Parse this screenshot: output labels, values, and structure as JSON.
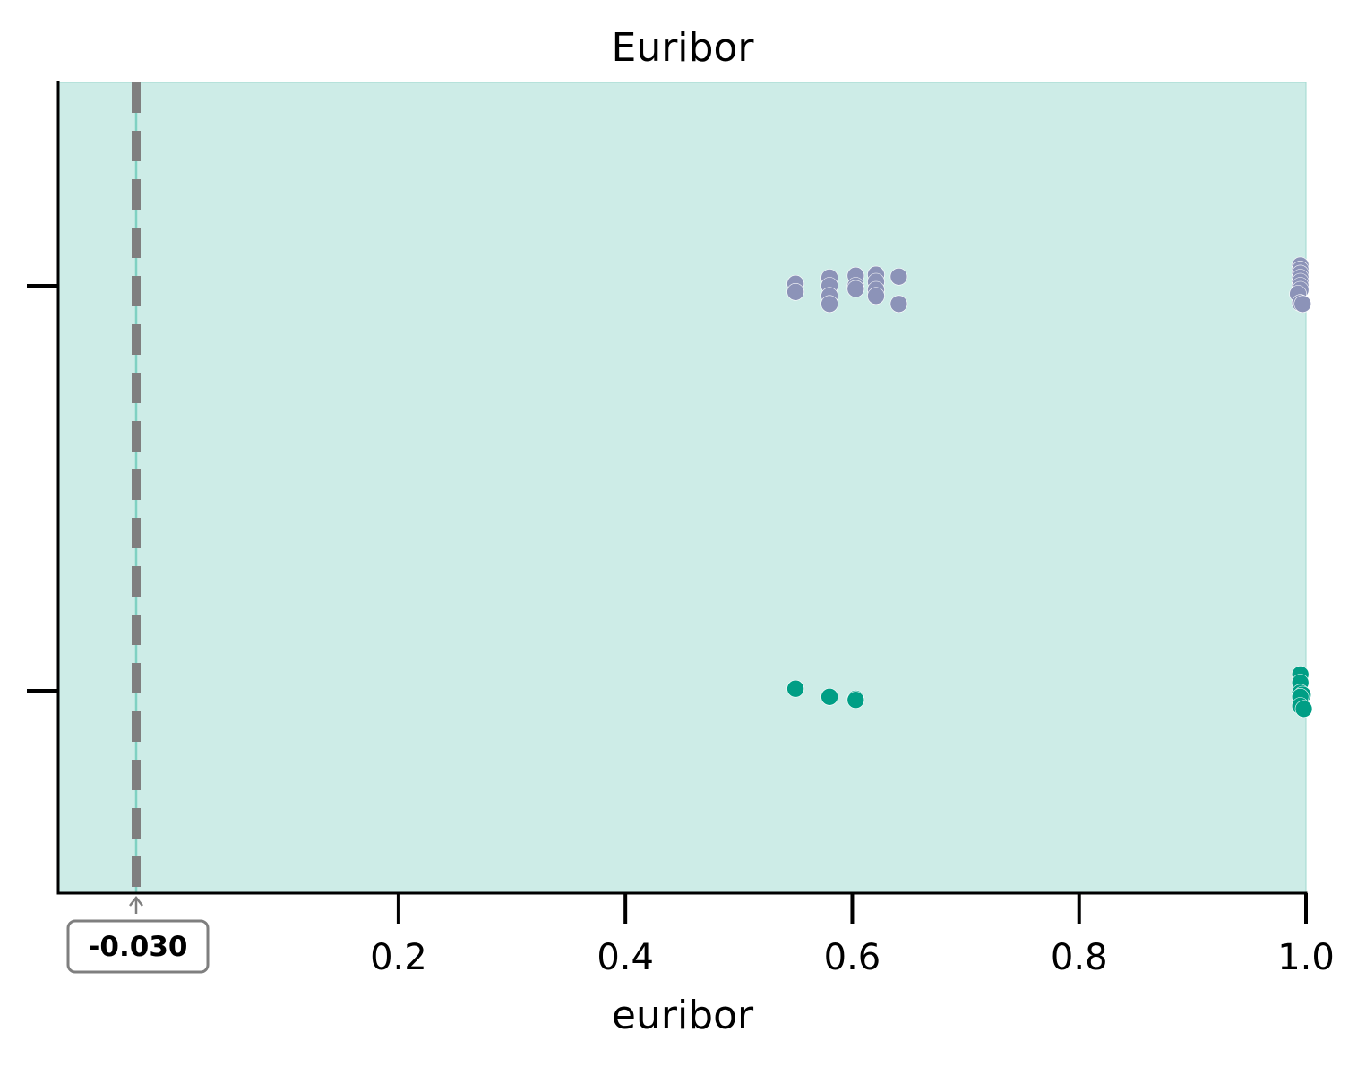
{
  "chart_data": {
    "type": "scatter",
    "subtype": "swarm",
    "title": "Euribor",
    "xlabel": "euribor",
    "ylabel": "",
    "xlim": [
      -0.1,
      1.0
    ],
    "xticks": [
      0.2,
      0.4,
      0.6,
      0.8,
      1.0
    ],
    "xtick_labels": [
      "0.2",
      "0.4",
      "0.6",
      "0.8",
      "1.0"
    ],
    "yticks_labeled": false,
    "grid": false,
    "background_color": "#cdece7",
    "reference_line": {
      "x": -0.03,
      "label": "-0.030",
      "style": "dashed",
      "color": "#7f7f7f"
    },
    "series": [
      {
        "color": "#8c93b8",
        "row": 0,
        "points": [
          {
            "x": 0.55,
            "y": 0.01
          },
          {
            "x": 0.55,
            "y": -0.03
          },
          {
            "x": 0.58,
            "y": 0.04
          },
          {
            "x": 0.58,
            "y": 0.0
          },
          {
            "x": 0.58,
            "y": -0.05
          },
          {
            "x": 0.58,
            "y": -0.09
          },
          {
            "x": 0.603,
            "y": 0.05
          },
          {
            "x": 0.603,
            "y": 0.0
          },
          {
            "x": 0.603,
            "y": -0.015
          },
          {
            "x": 0.621,
            "y": 0.055
          },
          {
            "x": 0.621,
            "y": 0.02
          },
          {
            "x": 0.621,
            "y": -0.02
          },
          {
            "x": 0.621,
            "y": -0.05
          },
          {
            "x": 0.641,
            "y": 0.045
          },
          {
            "x": 0.641,
            "y": -0.09
          },
          {
            "x": 0.995,
            "y": 0.1
          },
          {
            "x": 0.995,
            "y": 0.08
          },
          {
            "x": 0.995,
            "y": 0.06
          },
          {
            "x": 0.995,
            "y": 0.04
          },
          {
            "x": 0.995,
            "y": 0.02
          },
          {
            "x": 0.995,
            "y": 0.0
          },
          {
            "x": 0.995,
            "y": -0.02
          },
          {
            "x": 0.993,
            "y": -0.04
          },
          {
            "x": 0.995,
            "y": -0.085
          },
          {
            "x": 0.997,
            "y": -0.09
          }
        ]
      },
      {
        "color": "#009e85",
        "row": 1,
        "points": [
          {
            "x": 0.55,
            "y": 0.01
          },
          {
            "x": 0.58,
            "y": -0.03
          },
          {
            "x": 0.603,
            "y": -0.04
          },
          {
            "x": 0.603,
            "y": -0.045
          },
          {
            "x": 0.995,
            "y": 0.08
          },
          {
            "x": 0.995,
            "y": 0.04
          },
          {
            "x": 0.995,
            "y": -0.01
          },
          {
            "x": 0.997,
            "y": -0.02
          },
          {
            "x": 0.995,
            "y": -0.03
          },
          {
            "x": 0.995,
            "y": -0.075
          },
          {
            "x": 0.998,
            "y": -0.09
          }
        ]
      }
    ]
  }
}
